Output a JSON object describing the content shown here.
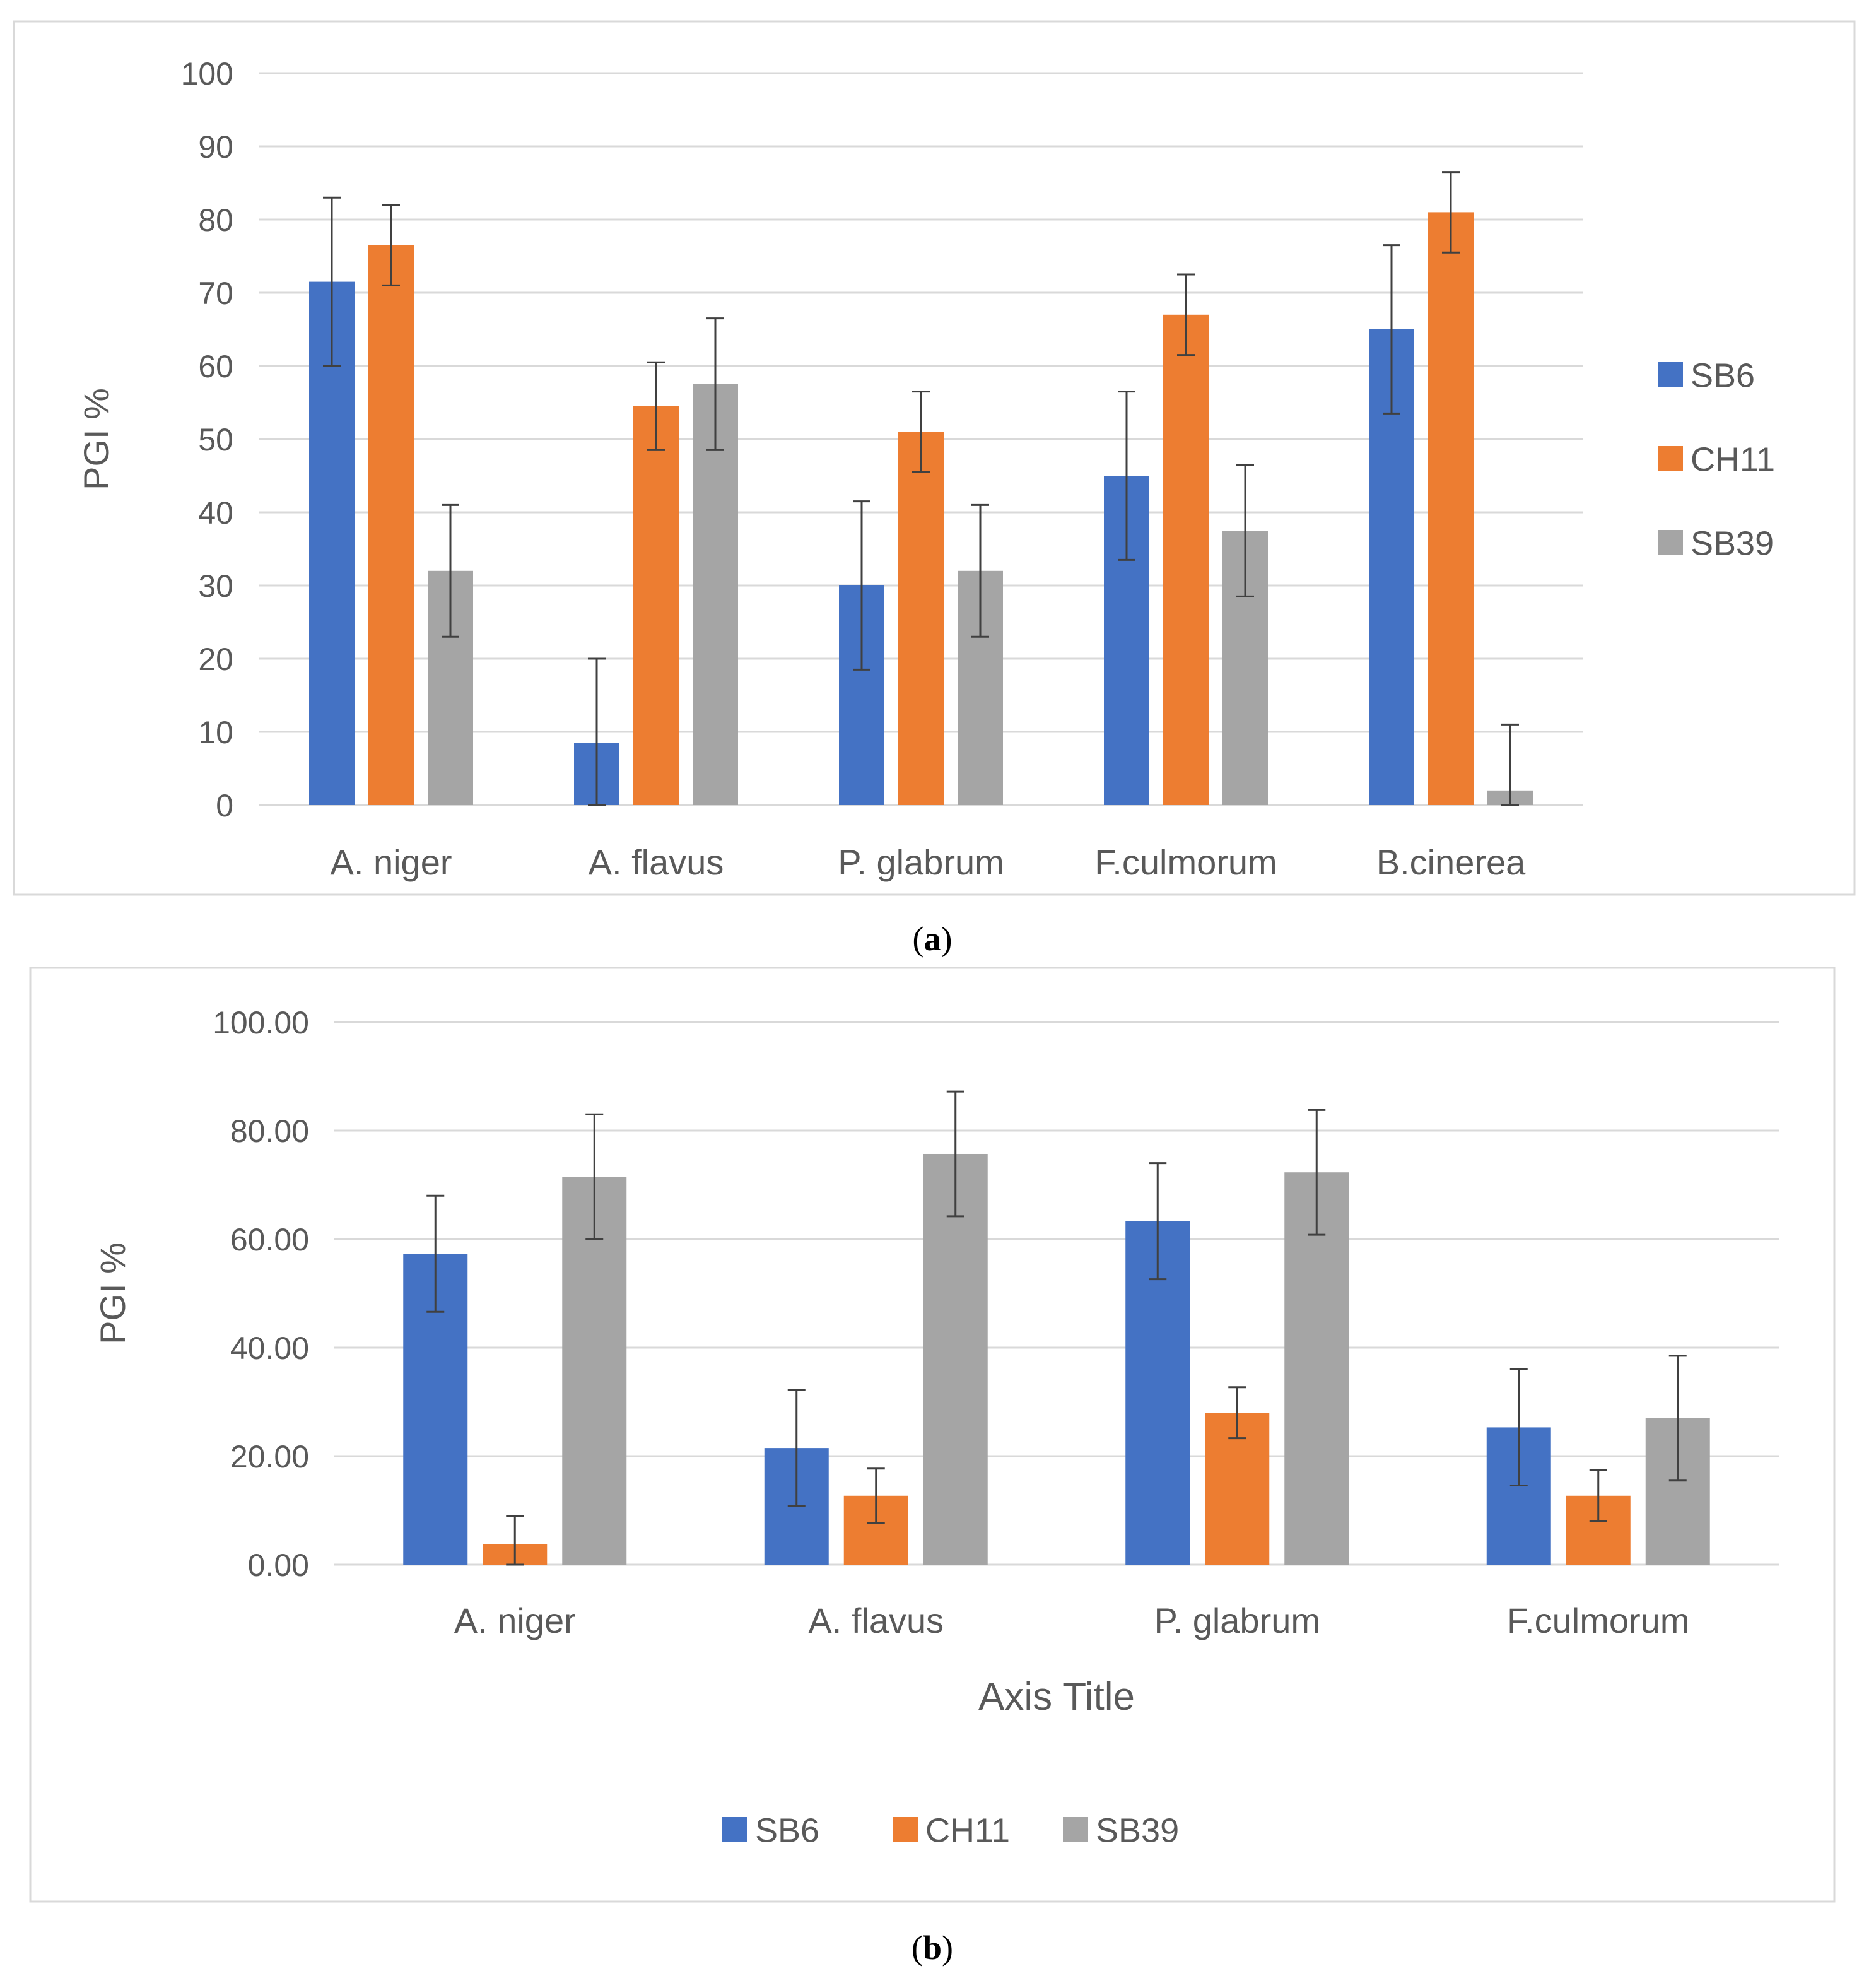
{
  "colors": {
    "SB6": "#4472c4",
    "CH11": "#ed7d31",
    "SB39": "#a5a5a5",
    "grid": "#d9d9d9",
    "text": "#595959",
    "errorbar": "#404040",
    "frame": "#d9d9d9"
  },
  "chart_data": [
    {
      "panel": "a",
      "caption_letter": "a",
      "type": "bar",
      "title": "",
      "xlabel": "",
      "ylabel": "PGI %",
      "ylim": [
        0,
        100
      ],
      "yticks": [
        0,
        10,
        20,
        30,
        40,
        50,
        60,
        70,
        80,
        90,
        100
      ],
      "ytick_labels": [
        "0",
        "10",
        "20",
        "30",
        "40",
        "50",
        "60",
        "70",
        "80",
        "90",
        "100"
      ],
      "grid": true,
      "legend_position": "right",
      "categories": [
        "A. niger",
        "A. flavus",
        "P. glabrum",
        "F.culmorum",
        "B.cinerea"
      ],
      "series": [
        {
          "name": "SB6",
          "values": [
            71.5,
            8.5,
            30,
            45,
            65
          ],
          "errors": [
            11.5,
            11.5,
            11.5,
            11.5,
            11.5
          ]
        },
        {
          "name": "CH11",
          "values": [
            76.5,
            54.5,
            51,
            67,
            81
          ],
          "errors": [
            5.5,
            6,
            5.5,
            5.5,
            5.5
          ]
        },
        {
          "name": "SB39",
          "values": [
            32,
            57.5,
            32,
            37.5,
            2
          ],
          "errors": [
            9,
            9,
            9,
            9,
            9
          ]
        }
      ]
    },
    {
      "panel": "b",
      "caption_letter": "b",
      "type": "bar",
      "title": "",
      "xlabel": "Axis Title",
      "ylabel": "PGI %",
      "ylim": [
        0,
        100
      ],
      "yticks": [
        0,
        20,
        40,
        60,
        80,
        100
      ],
      "ytick_labels": [
        "0.00",
        "20.00",
        "40.00",
        "60.00",
        "80.00",
        "100.00"
      ],
      "grid": true,
      "legend_position": "bottom",
      "categories": [
        "A. niger",
        "A. flavus",
        "P. glabrum",
        "F.culmorum"
      ],
      "series": [
        {
          "name": "SB6",
          "values": [
            57.3,
            21.5,
            63.3,
            25.3
          ],
          "errors": [
            10.7,
            10.7,
            10.7,
            10.7
          ]
        },
        {
          "name": "CH11",
          "values": [
            3.8,
            12.7,
            28,
            12.7
          ],
          "errors": [
            5.2,
            5,
            4.7,
            4.7
          ]
        },
        {
          "name": "SB39",
          "values": [
            71.5,
            75.7,
            72.3,
            27
          ],
          "errors": [
            11.5,
            11.5,
            11.5,
            11.5
          ]
        }
      ]
    }
  ]
}
